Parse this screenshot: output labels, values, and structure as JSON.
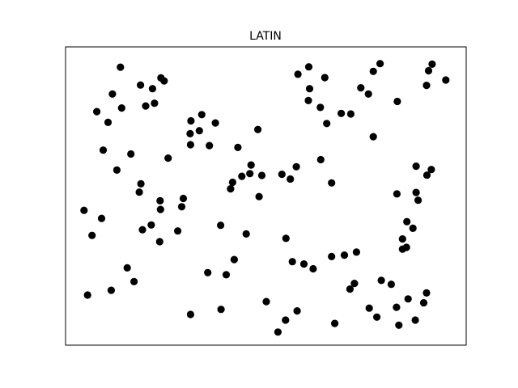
{
  "chart_data": {
    "type": "scatter",
    "title": "LATIN",
    "xlabel": "",
    "ylabel": "",
    "xlim": [
      0,
      1
    ],
    "ylim": [
      0,
      1
    ],
    "x_ticks_visible": false,
    "y_ticks_visible": false,
    "grid": false,
    "marker_color": "#000000",
    "points": [
      [
        0.137,
        0.932
      ],
      [
        0.238,
        0.896
      ],
      [
        0.246,
        0.886
      ],
      [
        0.117,
        0.842
      ],
      [
        0.222,
        0.811
      ],
      [
        0.078,
        0.783
      ],
      [
        0.14,
        0.795
      ],
      [
        0.2,
        0.802
      ],
      [
        0.106,
        0.747
      ],
      [
        0.34,
        0.773
      ],
      [
        0.313,
        0.752
      ],
      [
        0.217,
        0.86
      ],
      [
        0.187,
        0.872
      ],
      [
        0.094,
        0.654
      ],
      [
        0.163,
        0.641
      ],
      [
        0.128,
        0.587
      ],
      [
        0.311,
        0.709
      ],
      [
        0.334,
        0.719
      ],
      [
        0.312,
        0.672
      ],
      [
        0.359,
        0.669
      ],
      [
        0.374,
        0.745
      ],
      [
        0.256,
        0.627
      ],
      [
        0.48,
        0.723
      ],
      [
        0.43,
        0.663
      ],
      [
        0.417,
        0.546
      ],
      [
        0.46,
        0.575
      ],
      [
        0.188,
        0.541
      ],
      [
        0.184,
        0.513
      ],
      [
        0.236,
        0.484
      ],
      [
        0.294,
        0.492
      ],
      [
        0.29,
        0.464
      ],
      [
        0.237,
        0.455
      ],
      [
        0.046,
        0.452
      ],
      [
        0.09,
        0.425
      ],
      [
        0.066,
        0.368
      ],
      [
        0.214,
        0.403
      ],
      [
        0.235,
        0.347
      ],
      [
        0.28,
        0.383
      ],
      [
        0.192,
        0.387
      ],
      [
        0.463,
        0.604
      ],
      [
        0.44,
        0.566
      ],
      [
        0.49,
        0.569
      ],
      [
        0.483,
        0.498
      ],
      [
        0.412,
        0.524
      ],
      [
        0.576,
        0.598
      ],
      [
        0.54,
        0.573
      ],
      [
        0.561,
        0.557
      ],
      [
        0.451,
        0.373
      ],
      [
        0.387,
        0.402
      ],
      [
        0.421,
        0.287
      ],
      [
        0.355,
        0.243
      ],
      [
        0.401,
        0.236
      ],
      [
        0.154,
        0.259
      ],
      [
        0.171,
        0.213
      ],
      [
        0.055,
        0.168
      ],
      [
        0.114,
        0.184
      ],
      [
        0.388,
        0.12
      ],
      [
        0.312,
        0.103
      ],
      [
        0.501,
        0.146
      ],
      [
        0.549,
        0.084
      ],
      [
        0.53,
        0.044
      ],
      [
        0.578,
        0.115
      ],
      [
        0.647,
        0.897
      ],
      [
        0.607,
        0.933
      ],
      [
        0.58,
        0.908
      ],
      [
        0.609,
        0.86
      ],
      [
        0.606,
        0.82
      ],
      [
        0.636,
        0.797
      ],
      [
        0.652,
        0.743
      ],
      [
        0.688,
        0.777
      ],
      [
        0.712,
        0.775
      ],
      [
        0.756,
        0.842
      ],
      [
        0.768,
        0.699
      ],
      [
        0.637,
        0.622
      ],
      [
        0.664,
        0.544
      ],
      [
        0.55,
        0.358
      ],
      [
        0.566,
        0.28
      ],
      [
        0.595,
        0.272
      ],
      [
        0.618,
        0.256
      ],
      [
        0.664,
        0.297
      ],
      [
        0.696,
        0.302
      ],
      [
        0.726,
        0.312
      ],
      [
        0.71,
        0.188
      ],
      [
        0.721,
        0.207
      ],
      [
        0.788,
        0.217
      ],
      [
        0.813,
        0.204
      ],
      [
        0.841,
        0.322
      ],
      [
        0.851,
        0.328
      ],
      [
        0.737,
        0.863
      ],
      [
        0.768,
        0.918
      ],
      [
        0.785,
        0.944
      ],
      [
        0.828,
        0.817
      ],
      [
        0.901,
        0.871
      ],
      [
        0.906,
        0.92
      ],
      [
        0.915,
        0.942
      ],
      [
        0.949,
        0.889
      ],
      [
        0.841,
        0.356
      ],
      [
        0.867,
        0.392
      ],
      [
        0.827,
        0.507
      ],
      [
        0.902,
        0.57
      ],
      [
        0.913,
        0.589
      ],
      [
        0.875,
        0.6
      ],
      [
        0.88,
        0.486
      ],
      [
        0.875,
        0.512
      ],
      [
        0.852,
        0.414
      ],
      [
        0.758,
        0.124
      ],
      [
        0.777,
        0.094
      ],
      [
        0.832,
        0.067
      ],
      [
        0.873,
        0.084
      ],
      [
        0.894,
        0.142
      ],
      [
        0.901,
        0.175
      ],
      [
        0.855,
        0.155
      ],
      [
        0.826,
        0.127
      ],
      [
        0.672,
        0.073
      ]
    ]
  }
}
